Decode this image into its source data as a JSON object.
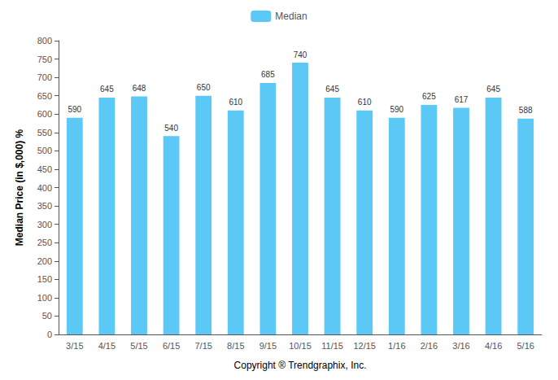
{
  "chart_data": {
    "type": "bar",
    "categories": [
      "3/15",
      "4/15",
      "5/15",
      "6/15",
      "7/15",
      "8/15",
      "9/15",
      "10/15",
      "11/15",
      "12/15",
      "1/16",
      "2/16",
      "3/16",
      "4/16",
      "5/16"
    ],
    "series": [
      {
        "name": "Median",
        "color": "#5BC8F5",
        "values": [
          590,
          645,
          648,
          540,
          650,
          610,
          685,
          740,
          645,
          610,
          590,
          625,
          617,
          645,
          588
        ]
      }
    ],
    "xlabel": "Copyright ® Trendgraphix, Inc.",
    "ylabel": "Median Price (in $,000) %",
    "ylim": [
      0,
      800
    ],
    "yticks": [
      0,
      50,
      100,
      150,
      200,
      250,
      300,
      350,
      400,
      450,
      500,
      550,
      600,
      650,
      700,
      750,
      800
    ],
    "grid": false,
    "legend": "top",
    "data_labels": true
  }
}
